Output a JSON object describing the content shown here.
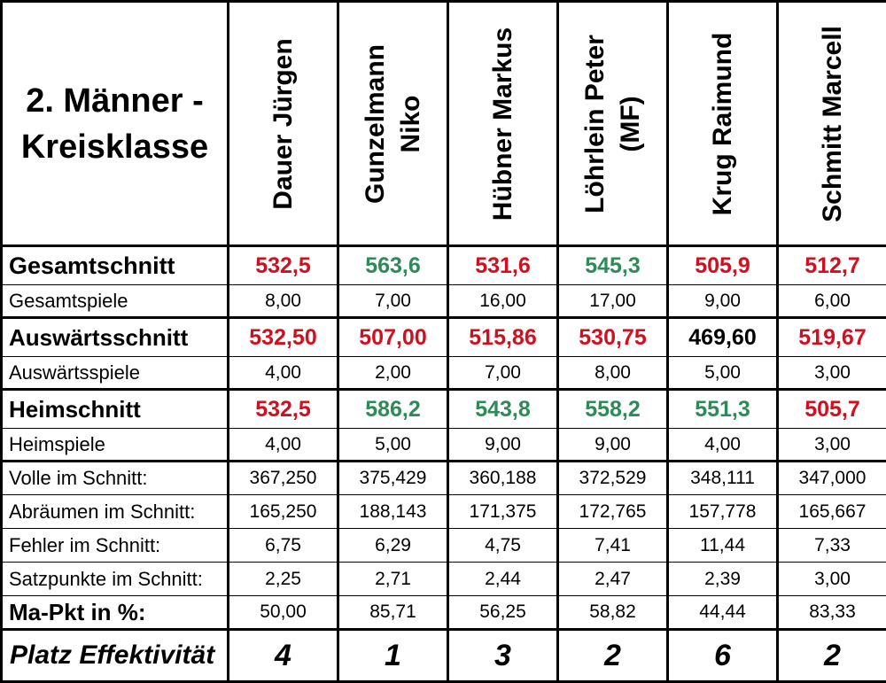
{
  "title_line1": "2. Männer -",
  "title_line2": "Kreisklasse",
  "players": [
    {
      "line1": "Dauer Jürgen",
      "line2": ""
    },
    {
      "line1": "Gunzelmann",
      "line2": "Niko"
    },
    {
      "line1": "Hübner Markus",
      "line2": ""
    },
    {
      "line1": "Löhrlein Peter",
      "line2": "(MF)"
    },
    {
      "line1": "Krug Raimund",
      "line2": ""
    },
    {
      "line1": "Schmitt Marcell",
      "line2": ""
    }
  ],
  "colors": {
    "red": "#d20f1e",
    "green": "#2e8b57",
    "black": "#000000"
  },
  "rows": [
    {
      "key": "gesamtschnitt",
      "label": "Gesamtschnitt",
      "style": "bigger",
      "values": [
        "532,5",
        "563,6",
        "531,6",
        "545,3",
        "505,9",
        "512,7"
      ],
      "colors": [
        "red",
        "green",
        "red",
        "green",
        "red",
        "red"
      ]
    },
    {
      "key": "gesamtspiele",
      "label": "Gesamtspiele",
      "style": "normal",
      "values": [
        "8,00",
        "7,00",
        "16,00",
        "17,00",
        "9,00",
        "6,00"
      ]
    },
    {
      "key": "auswaertsschnitt",
      "label": "Auswärtsschnitt",
      "style": "big",
      "values": [
        "532,50",
        "507,00",
        "515,86",
        "530,75",
        "469,60",
        "519,67"
      ],
      "colors": [
        "red",
        "red",
        "red",
        "red",
        "black",
        "red"
      ]
    },
    {
      "key": "auswaertsspiele",
      "label": "Auswärtsspiele",
      "style": "normal",
      "values": [
        "4,00",
        "2,00",
        "7,00",
        "8,00",
        "5,00",
        "3,00"
      ]
    },
    {
      "key": "heimschnitt",
      "label": "Heimschnitt",
      "style": "big",
      "values": [
        "532,5",
        "586,2",
        "543,8",
        "558,2",
        "551,3",
        "505,7"
      ],
      "colors": [
        "red",
        "green",
        "green",
        "green",
        "green",
        "red"
      ]
    },
    {
      "key": "heimspiele",
      "label": "Heimspiele",
      "style": "normal",
      "values": [
        "4,00",
        "5,00",
        "9,00",
        "9,00",
        "4,00",
        "3,00"
      ]
    },
    {
      "key": "volle",
      "label": "Volle im Schnitt:",
      "style": "normal",
      "values": [
        "367,250",
        "375,429",
        "360,188",
        "372,529",
        "348,111",
        "347,000"
      ]
    },
    {
      "key": "abraeumen",
      "label": "Abräumen im Schnitt:",
      "style": "normal",
      "values": [
        "165,250",
        "188,143",
        "171,375",
        "172,765",
        "157,778",
        "165,667"
      ]
    },
    {
      "key": "fehler",
      "label": "Fehler im Schnitt:",
      "style": "normal",
      "values": [
        "6,75",
        "6,29",
        "4,75",
        "7,41",
        "11,44",
        "7,33"
      ]
    },
    {
      "key": "satzpunkte",
      "label": "Satzpunkte im Schnitt:",
      "style": "normal",
      "values": [
        "2,25",
        "2,71",
        "2,44",
        "2,47",
        "2,39",
        "3,00"
      ]
    },
    {
      "key": "mapkt",
      "label": "Ma-Pkt in %:",
      "style": "big",
      "values": [
        "50,00",
        "85,71",
        "56,25",
        "58,82",
        "44,44",
        "83,33"
      ]
    },
    {
      "key": "platz",
      "label": "Platz Effektivität",
      "style": "rank",
      "values": [
        "4",
        "1",
        "3",
        "2",
        "6",
        "2"
      ]
    }
  ]
}
